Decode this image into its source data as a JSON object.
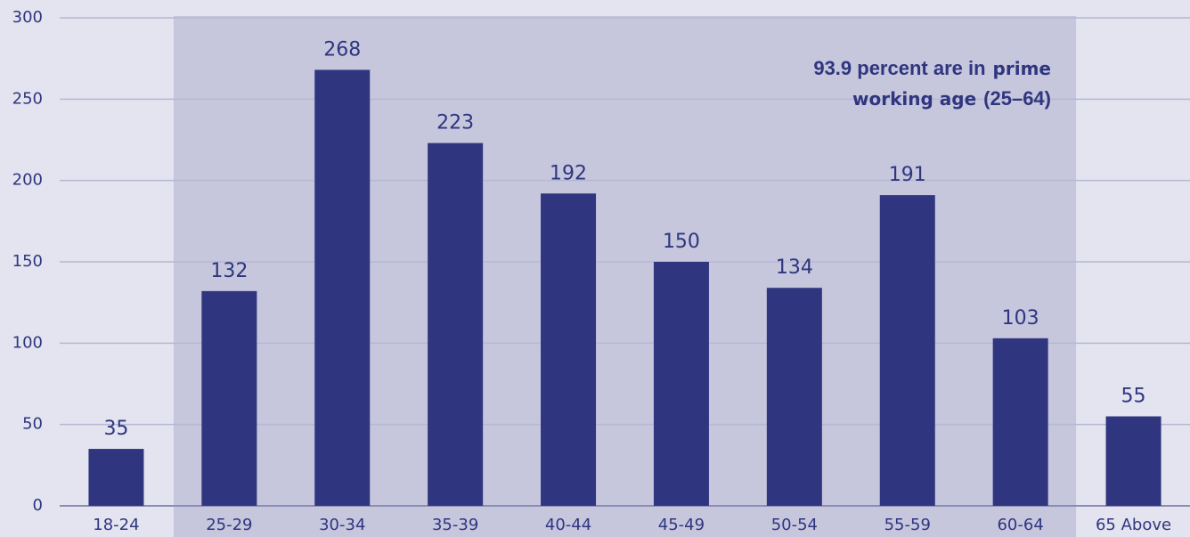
{
  "chart_data": {
    "type": "bar",
    "categories": [
      "18-24",
      "25-29",
      "30-34",
      "35-39",
      "40-44",
      "45-49",
      "50-54",
      "55-59",
      "60-64",
      "65 Above"
    ],
    "values": [
      35,
      132,
      268,
      223,
      192,
      150,
      134,
      191,
      103,
      55
    ],
    "color": "#2f367f",
    "ylim": [
      0,
      300
    ],
    "yticks": [
      0,
      50,
      100,
      150,
      200,
      250,
      300
    ],
    "grid": true,
    "highlight": {
      "categories": [
        1,
        8
      ],
      "color": "#c6c6dd"
    },
    "annotation": [
      [
        "93.9 percent are in",
        "prime"
      ],
      [
        "working age",
        "(25–64)"
      ]
    ]
  }
}
